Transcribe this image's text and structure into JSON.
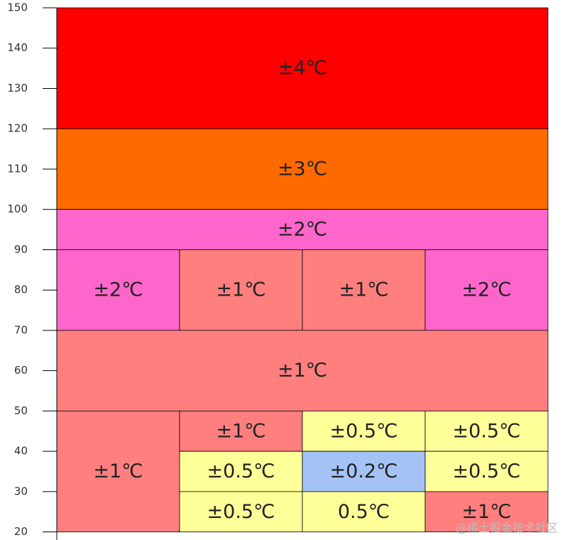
{
  "chart_data": {
    "type": "blocks",
    "ylim": [
      18,
      150
    ],
    "yticks": [
      20,
      30,
      40,
      50,
      60,
      70,
      80,
      90,
      100,
      110,
      120,
      130,
      140,
      150
    ],
    "xlim": [
      0,
      4
    ],
    "cells": [
      {
        "label": "±4℃",
        "y0": 120,
        "y1": 150,
        "x0": 0,
        "x1": 4,
        "color": "#ff0000"
      },
      {
        "label": "±3℃",
        "y0": 100,
        "y1": 120,
        "x0": 0,
        "x1": 4,
        "color": "#ff6a00"
      },
      {
        "label": "±2℃",
        "y0": 90,
        "y1": 100,
        "x0": 0,
        "x1": 4,
        "color": "#ff66cc"
      },
      {
        "label": "±2℃",
        "y0": 70,
        "y1": 90,
        "x0": 0,
        "x1": 1,
        "color": "#ff66cc"
      },
      {
        "label": "±1℃",
        "y0": 70,
        "y1": 90,
        "x0": 1,
        "x1": 2,
        "color": "#ff7f7f"
      },
      {
        "label": "±1℃",
        "y0": 70,
        "y1": 90,
        "x0": 2,
        "x1": 3,
        "color": "#ff7f7f"
      },
      {
        "label": "±2℃",
        "y0": 70,
        "y1": 90,
        "x0": 3,
        "x1": 4,
        "color": "#ff66cc"
      },
      {
        "label": "±1℃",
        "y0": 50,
        "y1": 70,
        "x0": 0,
        "x1": 4,
        "color": "#ff7f7f"
      },
      {
        "label": "±1℃",
        "y0": 20,
        "y1": 50,
        "x0": 0,
        "x1": 1,
        "color": "#ff7f7f"
      },
      {
        "label": "±1℃",
        "y0": 40,
        "y1": 50,
        "x0": 1,
        "x1": 2,
        "color": "#ff7f7f"
      },
      {
        "label": "±0.5℃",
        "y0": 40,
        "y1": 50,
        "x0": 2,
        "x1": 3,
        "color": "#ffff99"
      },
      {
        "label": "±0.5℃",
        "y0": 40,
        "y1": 50,
        "x0": 3,
        "x1": 4,
        "color": "#ffff99"
      },
      {
        "label": "±0.5℃",
        "y0": 30,
        "y1": 40,
        "x0": 1,
        "x1": 2,
        "color": "#ffff99"
      },
      {
        "label": "±0.2℃",
        "y0": 30,
        "y1": 40,
        "x0": 2,
        "x1": 3,
        "color": "#a4c2f4"
      },
      {
        "label": "±0.5℃",
        "y0": 30,
        "y1": 40,
        "x0": 3,
        "x1": 4,
        "color": "#ffff99"
      },
      {
        "label": "±0.5℃",
        "y0": 20,
        "y1": 30,
        "x0": 1,
        "x1": 2,
        "color": "#ffff99"
      },
      {
        "label": "0.5℃",
        "y0": 20,
        "y1": 30,
        "x0": 2,
        "x1": 3,
        "color": "#ffff99"
      },
      {
        "label": "±1℃",
        "y0": 20,
        "y1": 30,
        "x0": 3,
        "x1": 4,
        "color": "#ff7f7f"
      }
    ],
    "watermark": "@稀土掘金技术社区"
  }
}
